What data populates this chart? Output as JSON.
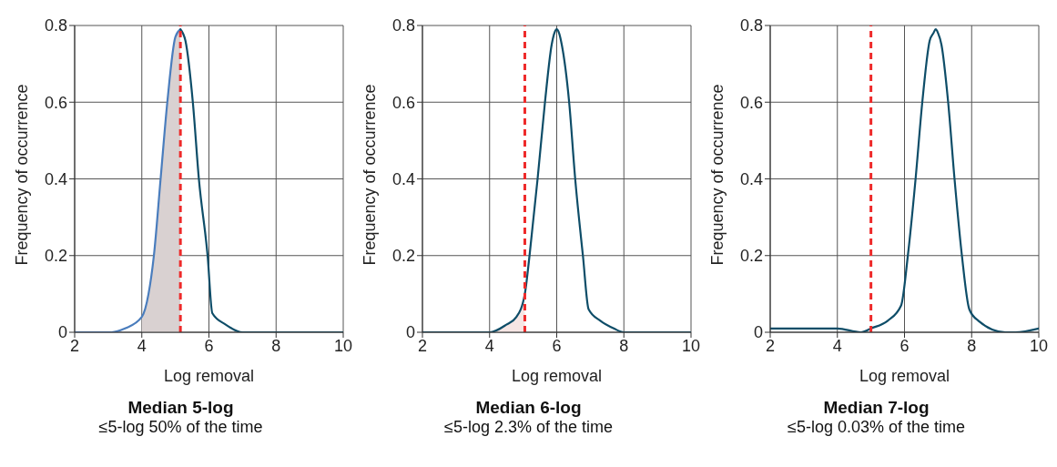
{
  "chart_data": [
    {
      "type": "line",
      "title": "Median 5-log",
      "subtitle": "≤5-log 50% of the time",
      "xlabel": "Log removal",
      "ylabel": "Frequency of occurrence",
      "xlim": [
        2,
        10
      ],
      "xticks": [
        2,
        4,
        6,
        8,
        10
      ],
      "ylim": [
        0,
        0.8
      ],
      "yticks": [
        0,
        0.2,
        0.4,
        0.6,
        0.8
      ],
      "grid": true,
      "marker": "none",
      "series": [
        {
          "type": "area",
          "color": "#d9d1d1",
          "x": [
            4.0,
            4.2,
            4.36,
            4.56,
            4.76,
            5.0,
            5.15
          ],
          "values": [
            0.04,
            0.1,
            0.2,
            0.4,
            0.6,
            0.77,
            0.79
          ]
        },
        {
          "color": "#4a7dbd",
          "x": [
            2.0,
            3.1,
            3.5,
            4.0,
            4.2,
            4.36,
            4.56,
            4.76,
            5.0,
            5.15
          ],
          "values": [
            0.0,
            0.0,
            0.01,
            0.04,
            0.1,
            0.2,
            0.4,
            0.6,
            0.77,
            0.79
          ]
        },
        {
          "color": "#0e4d68",
          "x": [
            5.15,
            5.3,
            5.52,
            5.7,
            5.96,
            6.1,
            6.5,
            7.0,
            7.2,
            8.0,
            10.0
          ],
          "values": [
            0.79,
            0.76,
            0.6,
            0.4,
            0.2,
            0.05,
            0.02,
            0.0,
            0.0,
            0.0,
            0.0
          ]
        }
      ],
      "ref_lines": [
        {
          "axis": "x",
          "value": 5.15,
          "color": "#ee2a2a",
          "line_style": "dashed"
        }
      ]
    },
    {
      "type": "line",
      "title": "Median 6-log",
      "subtitle": "≤5-log 2.3% of the time",
      "xlabel": "Log removal",
      "ylabel": "Frequency of occurrence",
      "xlim": [
        2,
        10
      ],
      "xticks": [
        2,
        4,
        6,
        8,
        10
      ],
      "ylim": [
        0,
        0.8
      ],
      "yticks": [
        0,
        0.2,
        0.4,
        0.6,
        0.8
      ],
      "grid": true,
      "marker": "none",
      "series": [
        {
          "type": "area",
          "color": "#f6e6e4",
          "x": [
            4.0,
            4.5,
            4.8,
            5.05
          ],
          "values": [
            0.0,
            0.02,
            0.04,
            0.08
          ]
        },
        {
          "color": "#0e4d68",
          "x": [
            2.0,
            4.0,
            4.5,
            4.8,
            5.05,
            5.19,
            5.43,
            5.65,
            5.85,
            5.93,
            6.0,
            6.07,
            6.15,
            6.37,
            6.55,
            6.78,
            6.95,
            7.3,
            7.7,
            8.0,
            10.0
          ],
          "values": [
            0.0,
            0.0,
            0.02,
            0.04,
            0.1,
            0.2,
            0.4,
            0.6,
            0.75,
            0.78,
            0.79,
            0.78,
            0.75,
            0.6,
            0.4,
            0.2,
            0.06,
            0.03,
            0.01,
            0.0,
            0.0
          ]
        }
      ],
      "ref_lines": [
        {
          "axis": "x",
          "value": 5.05,
          "color": "#ee2a2a",
          "line_style": "dashed"
        }
      ]
    },
    {
      "type": "line",
      "title": "Median 7-log",
      "subtitle": "≤5-log 0.03% of the time",
      "xlabel": "Log removal",
      "ylabel": "Frequency of occurrence",
      "xlim": [
        2,
        10
      ],
      "xticks": [
        2,
        4,
        6,
        8,
        10
      ],
      "ylim": [
        0,
        0.8
      ],
      "yticks": [
        0,
        0.2,
        0.4,
        0.6,
        0.8
      ],
      "grid": true,
      "marker": "none",
      "series": [
        {
          "color": "#0e4d68",
          "x": [
            2.0,
            4.0,
            4.7,
            5.0,
            5.5,
            5.9,
            6.1,
            6.33,
            6.53,
            6.75,
            6.86,
            6.93,
            7.0,
            7.1,
            7.3,
            7.49,
            7.71,
            7.93,
            8.2,
            9.0,
            9.3,
            10.0
          ],
          "values": [
            0.01,
            0.01,
            0.0,
            0.01,
            0.03,
            0.07,
            0.2,
            0.4,
            0.6,
            0.76,
            0.78,
            0.79,
            0.78,
            0.75,
            0.6,
            0.4,
            0.2,
            0.06,
            0.03,
            0.0,
            0.0,
            0.01
          ]
        }
      ],
      "ref_lines": [
        {
          "axis": "x",
          "value": 5.0,
          "color": "#ee2a2a",
          "line_style": "dashed"
        }
      ]
    }
  ]
}
